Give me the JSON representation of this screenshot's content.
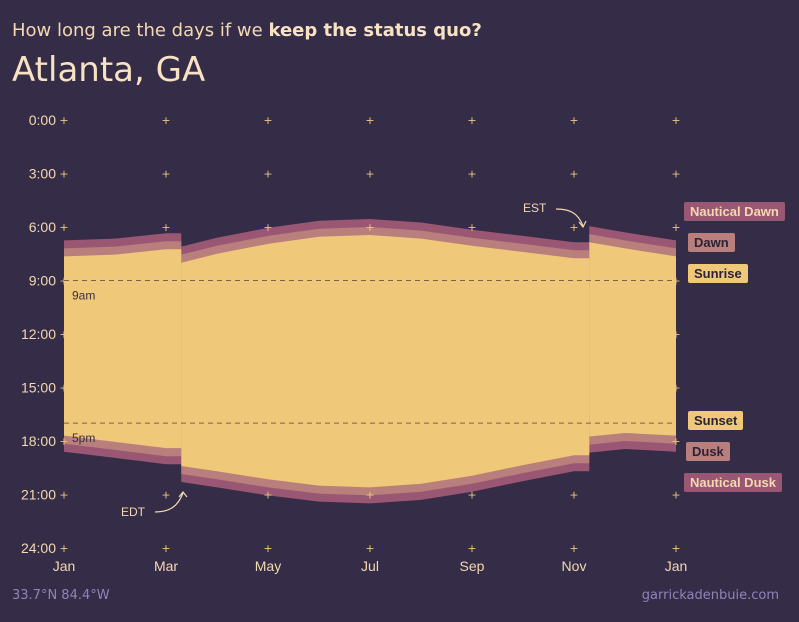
{
  "header": {
    "subtitle_prefix": "How long are the days if we",
    "subtitle_bold": "keep the status quo?",
    "title": "Atlanta, GA"
  },
  "footer": {
    "coordinates": "33.7°N 84.4°W",
    "credit": "garrickadenbuie.com"
  },
  "chart_data": {
    "type": "area",
    "x_ticks": [
      "Jan",
      "Mar",
      "May",
      "Jul",
      "Sep",
      "Nov",
      "Jan"
    ],
    "x_tick_months": [
      0,
      2,
      4,
      6,
      8,
      10,
      12
    ],
    "y_ticks": [
      "0:00",
      "3:00",
      "6:00",
      "9:00",
      "12:00",
      "15:00",
      "18:00",
      "21:00",
      "24:00"
    ],
    "y_tick_hours": [
      0,
      3,
      6,
      9,
      12,
      15,
      18,
      21,
      24
    ],
    "ylim": [
      24,
      0
    ],
    "x_unit": "months since Jan 1",
    "reference_lines": [
      {
        "label": "9am",
        "hour": 9
      },
      {
        "label": "5pm",
        "hour": 17
      }
    ],
    "annotations": [
      {
        "label": "EST",
        "month": 10.3
      },
      {
        "label": "EDT",
        "month": 2.3
      }
    ],
    "bands": [
      {
        "name": "Nautical Dawn",
        "color": "#9a5773"
      },
      {
        "name": "Dawn",
        "color": "#b97f7c"
      },
      {
        "name": "Sunrise",
        "color": "#f0c87a"
      },
      {
        "name": "Sunset",
        "color": "#f0c87a"
      },
      {
        "name": "Dusk",
        "color": "#b97f7c"
      },
      {
        "name": "Nautical Dusk",
        "color": "#9a5773"
      }
    ],
    "series": {
      "month": [
        0,
        1,
        2,
        2.3,
        3,
        4,
        5,
        6,
        7,
        8,
        9,
        10,
        10.3,
        11,
        12
      ],
      "nautical_dawn": [
        6.75,
        6.65,
        6.35,
        7.1,
        6.6,
        6.05,
        5.65,
        5.55,
        5.75,
        6.15,
        6.5,
        6.85,
        5.95,
        6.3,
        6.75
      ],
      "dawn": [
        7.2,
        7.1,
        6.8,
        7.55,
        7.05,
        6.5,
        6.1,
        6.0,
        6.2,
        6.6,
        6.95,
        7.3,
        6.4,
        6.75,
        7.2
      ],
      "sunrise": [
        7.65,
        7.55,
        7.25,
        8.0,
        7.5,
        6.95,
        6.55,
        6.45,
        6.65,
        7.05,
        7.4,
        7.75,
        6.85,
        7.2,
        7.65
      ],
      "sunset": [
        17.7,
        18.05,
        18.4,
        19.4,
        19.7,
        20.15,
        20.5,
        20.6,
        20.4,
        19.95,
        19.35,
        18.8,
        17.75,
        17.55,
        17.7
      ],
      "dusk": [
        18.15,
        18.5,
        18.85,
        19.85,
        20.15,
        20.6,
        20.95,
        21.05,
        20.85,
        20.4,
        19.8,
        19.25,
        18.2,
        18.0,
        18.15
      ],
      "nautical_dusk": [
        18.6,
        18.95,
        19.3,
        20.3,
        20.6,
        21.05,
        21.4,
        21.5,
        21.3,
        20.85,
        20.25,
        19.7,
        18.65,
        18.45,
        18.6
      ]
    },
    "grid": false
  }
}
